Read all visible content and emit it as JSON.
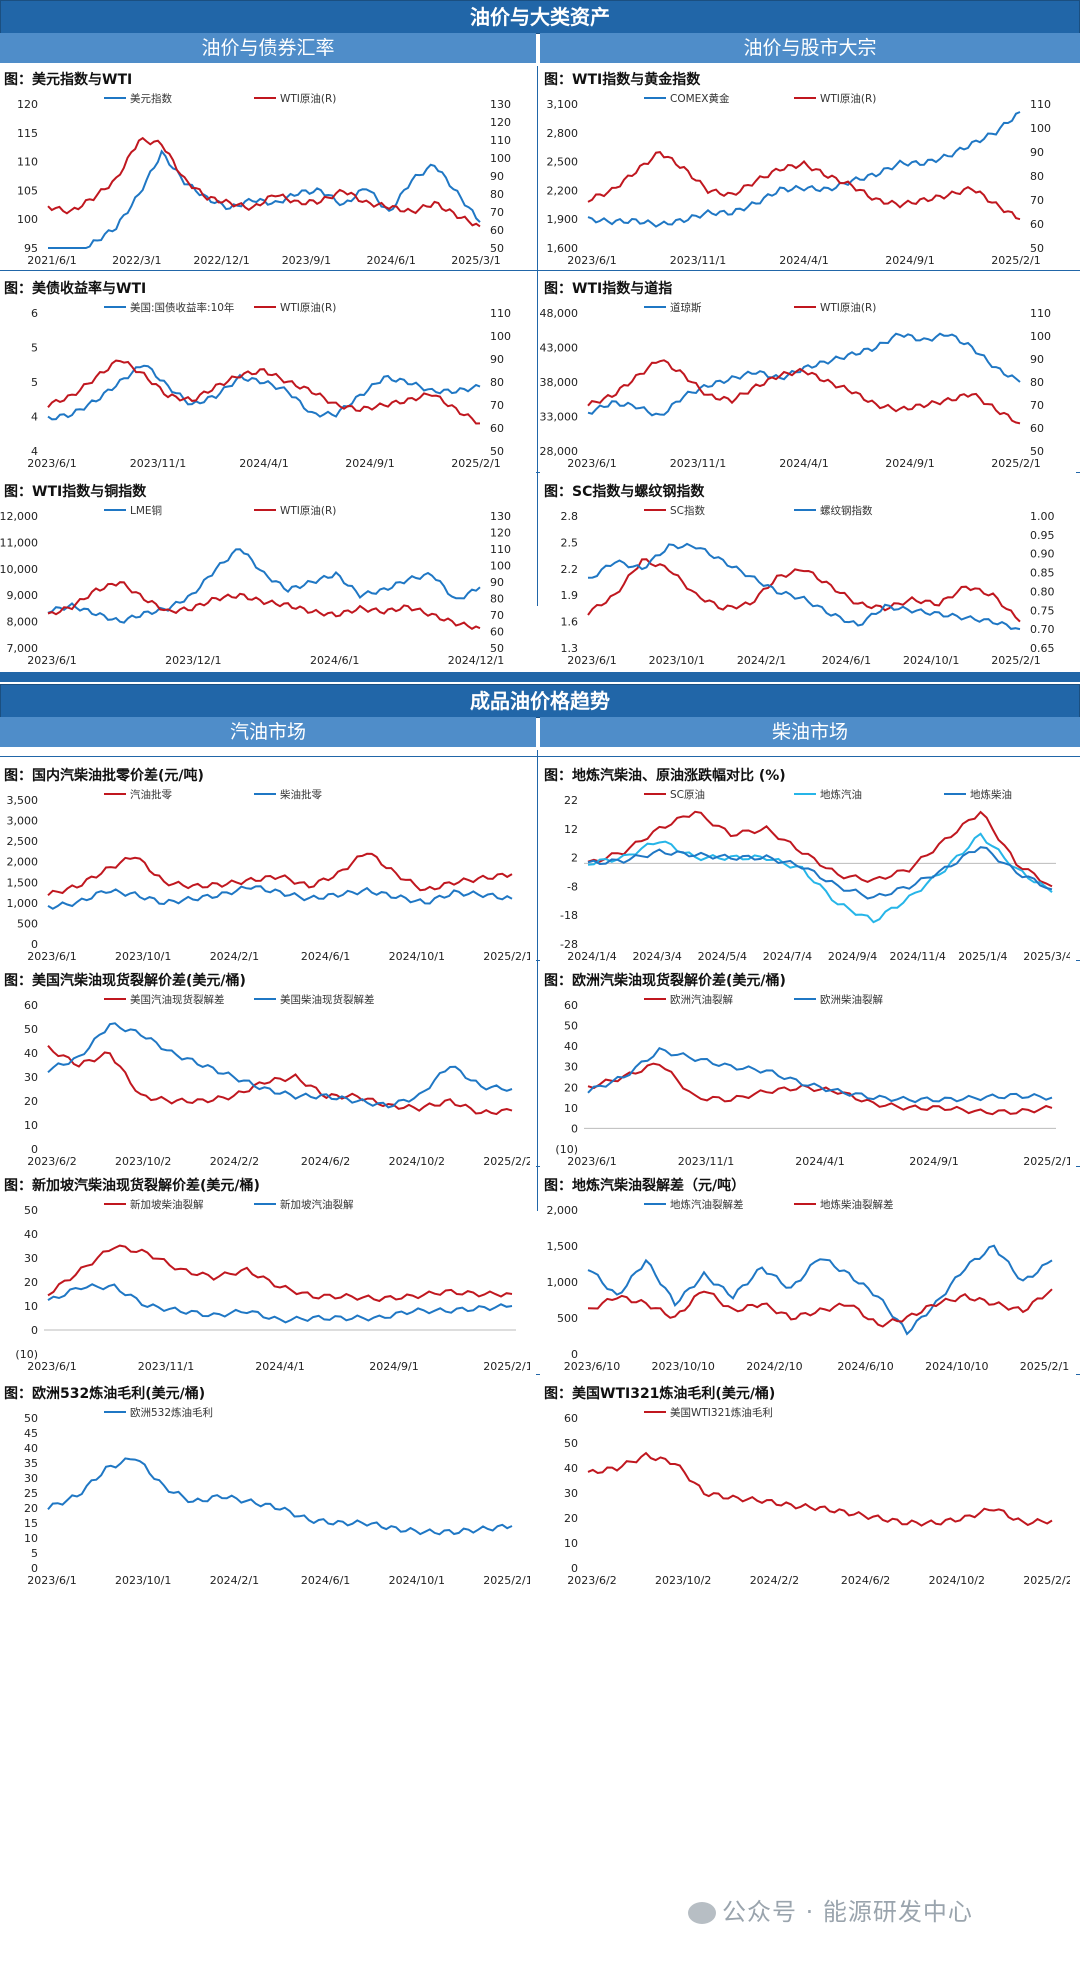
{
  "sections": {
    "top_title": "油价与大类资产",
    "top_left": "油价与债券汇率",
    "top_right": "油价与股市大宗",
    "bottom_title": "成品油价格趋势",
    "bottom_left": "汽油市场",
    "bottom_right": "柴油市场"
  },
  "watermark": "公众号 · 能源研发中心",
  "chart_data": [
    {
      "title": "图：美元指数与WTI",
      "type": "line",
      "x_ticks": [
        "2021/6/1",
        "2022/3/1",
        "2022/12/1",
        "2023/9/1",
        "2024/6/1",
        "2025/3/1"
      ],
      "ylim": [
        95,
        120
      ],
      "y_ticks": [
        "95",
        "100",
        "105",
        "110",
        "115",
        "120"
      ],
      "y2lim": [
        50,
        130
      ],
      "y2_ticks": [
        "50",
        "60",
        "70",
        "80",
        "90",
        "100",
        "110",
        "120",
        "130"
      ],
      "series": [
        {
          "name": "美元指数",
          "color": "#1f77c4",
          "axis": "left",
          "values": [
            90.5,
            92.5,
            95.9,
            98.6,
            104.3,
            111.5,
            106.5,
            103.6,
            101.9,
            103.4,
            102.7,
            104.6,
            105.0,
            102.4,
            105.6,
            101.1,
            106.8,
            109.5,
            104.5,
            99.5
          ]
        },
        {
          "name": "WTI原油(R)",
          "color": "#c0171f",
          "axis": "right",
          "values": [
            73,
            70,
            78,
            88,
            110,
            108,
            88,
            78,
            75,
            72,
            80,
            75,
            76,
            82,
            75,
            73,
            70,
            75,
            68,
            62
          ]
        }
      ]
    },
    {
      "title": "图：WTI指数与黄金指数",
      "type": "line",
      "x_ticks": [
        "2023/6/1",
        "2023/11/1",
        "2024/4/1",
        "2024/9/1",
        "2025/2/1"
      ],
      "ylim": [
        1600,
        3400
      ],
      "y_ticks": [
        "1,600",
        "1,900",
        "2,200",
        "2,500",
        "2,800",
        "3,100"
      ],
      "y2lim": [
        50,
        110
      ],
      "y2_ticks": [
        "50",
        "60",
        "70",
        "80",
        "90",
        "100",
        "110"
      ],
      "series": [
        {
          "name": "COMEX黄金",
          "color": "#1f77c4",
          "axis": "left",
          "values": [
            1960,
            1930,
            1940,
            1890,
            1950,
            2040,
            2040,
            2160,
            2330,
            2350,
            2330,
            2440,
            2520,
            2660,
            2660,
            2750,
            2900,
            3050,
            3300
          ]
        },
        {
          "name": "WTI原油(R)",
          "color": "#c0171f",
          "axis": "right",
          "values": [
            70,
            74,
            82,
            90,
            83,
            74,
            72,
            78,
            83,
            85,
            80,
            76,
            70,
            68,
            70,
            72,
            75,
            68,
            62
          ]
        }
      ]
    },
    {
      "title": "图：美债收益率与WTI",
      "type": "line",
      "x_ticks": [
        "2023/6/1",
        "2023/11/1",
        "2024/4/1",
        "2024/9/1",
        "2025/2/1"
      ],
      "ylim": [
        3,
        6
      ],
      "y_ticks": [
        "4",
        "4",
        "5",
        "5",
        "6"
      ],
      "y2lim": [
        50,
        110
      ],
      "y2_ticks": [
        "50",
        "60",
        "70",
        "80",
        "90",
        "100",
        "110"
      ],
      "series": [
        {
          "name": "美国:国债收益率:10年",
          "color": "#1f77c4",
          "axis": "left",
          "values": [
            3.7,
            3.8,
            4.1,
            4.5,
            4.9,
            4.4,
            4.0,
            4.2,
            4.6,
            4.5,
            4.3,
            3.8,
            3.8,
            4.2,
            4.6,
            4.5,
            4.3,
            4.3,
            4.4
          ]
        },
        {
          "name": "WTI原油(R)",
          "color": "#c0171f",
          "axis": "right",
          "values": [
            70,
            74,
            82,
            90,
            83,
            74,
            72,
            78,
            83,
            85,
            80,
            76,
            70,
            68,
            70,
            72,
            75,
            68,
            62
          ]
        }
      ]
    },
    {
      "title": "图：WTI指数与道指",
      "type": "line",
      "x_ticks": [
        "2023/6/1",
        "2023/11/1",
        "2024/4/1",
        "2024/9/1",
        "2025/2/1"
      ],
      "ylim": [
        28000,
        48000
      ],
      "y_ticks": [
        "28,000",
        "33,000",
        "38,000",
        "43,000",
        "48,000"
      ],
      "y2lim": [
        50,
        110
      ],
      "y2_ticks": [
        "50",
        "60",
        "70",
        "80",
        "90",
        "100",
        "110"
      ],
      "series": [
        {
          "name": "道琼斯",
          "color": "#1f77c4",
          "axis": "left",
          "values": [
            33500,
            35000,
            34500,
            33000,
            36000,
            37500,
            38500,
            39500,
            38500,
            40000,
            41000,
            42000,
            43000,
            45000,
            44000,
            45000,
            43000,
            40000,
            38000
          ]
        },
        {
          "name": "WTI原油(R)",
          "color": "#c0171f",
          "axis": "right",
          "values": [
            70,
            74,
            82,
            90,
            83,
            74,
            72,
            78,
            83,
            85,
            80,
            76,
            70,
            68,
            70,
            72,
            75,
            68,
            62
          ]
        }
      ]
    },
    {
      "title": "图：WTI指数与铜指数",
      "type": "line",
      "x_ticks": [
        "2023/6/1",
        "2023/12/1",
        "2024/6/1",
        "2024/12/1"
      ],
      "ylim": [
        7000,
        12000
      ],
      "y_ticks": [
        "7,000",
        "8,000",
        "9,000",
        "10,000",
        "11,000",
        "12,000"
      ],
      "y2lim": [
        50,
        130
      ],
      "y2_ticks": [
        "50",
        "60",
        "70",
        "80",
        "90",
        "100",
        "110",
        "120",
        "130"
      ],
      "series": [
        {
          "name": "LME铜",
          "color": "#1f77c4",
          "axis": "left",
          "values": [
            8400,
            8600,
            8300,
            8000,
            8300,
            8500,
            9000,
            10000,
            10800,
            9800,
            9200,
            9500,
            9800,
            9000,
            9200,
            9600,
            9800,
            8800,
            9300
          ]
        },
        {
          "name": "WTI原油(R)",
          "color": "#c0171f",
          "axis": "right",
          "values": [
            70,
            75,
            85,
            90,
            80,
            72,
            74,
            80,
            82,
            78,
            76,
            72,
            70,
            74,
            72,
            75,
            70,
            65,
            62
          ]
        }
      ]
    },
    {
      "title": "图：SC指数与螺纹钢指数",
      "type": "line",
      "x_ticks": [
        "2023/6/1",
        "2023/10/1",
        "2024/2/1",
        "2024/6/1",
        "2024/10/1",
        "2025/2/1"
      ],
      "ylim": [
        1.3,
        2.8
      ],
      "y_ticks": [
        "1.3",
        "1.6",
        "1.9",
        "2.2",
        "2.5",
        "2.8"
      ],
      "y2lim": [
        0.65,
        1.0
      ],
      "y2_ticks": [
        "0.65",
        "0.70",
        "0.75",
        "0.80",
        "0.85",
        "0.90",
        "0.95",
        "1.00"
      ],
      "series": [
        {
          "name": "SC指数",
          "color": "#c0171f",
          "axis": "left",
          "values": [
            1.7,
            1.9,
            2.3,
            2.2,
            1.9,
            1.75,
            1.8,
            2.1,
            2.2,
            2.0,
            1.8,
            1.75,
            1.85,
            1.8,
            2.0,
            1.9,
            1.6
          ]
        },
        {
          "name": "螺纹钢指数",
          "color": "#1f77c4",
          "axis": "right",
          "values": [
            0.83,
            0.88,
            0.86,
            0.92,
            0.92,
            0.88,
            0.84,
            0.8,
            0.78,
            0.74,
            0.71,
            0.76,
            0.75,
            0.74,
            0.73,
            0.72,
            0.7
          ]
        }
      ]
    },
    {
      "title": "图：国内汽柴油批零价差(元/吨)",
      "type": "line",
      "x_ticks": [
        "2023/6/1",
        "2023/10/1",
        "2024/2/1",
        "2024/6/1",
        "2024/10/1",
        "2025/2/1"
      ],
      "ylim": [
        0,
        3500
      ],
      "y_ticks": [
        "0",
        "500",
        "1,000",
        "1,500",
        "2,000",
        "2,500",
        "3,000",
        "3,500"
      ],
      "series": [
        {
          "name": "汽油批零",
          "color": "#c0171f",
          "values": [
            1200,
            1400,
            1800,
            2150,
            1500,
            1400,
            1450,
            1550,
            1650,
            1400,
            1700,
            2250,
            1700,
            1300,
            1500,
            1600,
            1700
          ]
        },
        {
          "name": "柴油批零",
          "color": "#1f77c4",
          "values": [
            900,
            1000,
            1300,
            1200,
            1000,
            1100,
            1200,
            1400,
            1250,
            1100,
            1200,
            1300,
            1150,
            1000,
            1250,
            1200,
            1100
          ]
        }
      ]
    },
    {
      "title": "图：地炼汽柴油、原油涨跌幅对比 (%)",
      "type": "line",
      "x_ticks": [
        "2024/1/4",
        "2024/3/4",
        "2024/5/4",
        "2024/7/4",
        "2024/9/4",
        "2024/11/4",
        "2025/1/4",
        "2025/3/4"
      ],
      "ylim": [
        -28,
        22
      ],
      "y_ticks": [
        "-28",
        "-18",
        "-8",
        "2",
        "12",
        "22"
      ],
      "series": [
        {
          "name": "SC原油",
          "color": "#c0171f",
          "values": [
            0,
            4,
            12,
            18,
            10,
            12,
            4,
            -4,
            -6,
            -2,
            8,
            18,
            0,
            -8
          ]
        },
        {
          "name": "地炼汽油",
          "color": "#26b5e8",
          "values": [
            0,
            2,
            8,
            2,
            2,
            2,
            -2,
            -14,
            -20,
            -12,
            -2,
            10,
            -2,
            -10
          ]
        },
        {
          "name": "地炼柴油",
          "color": "#1f77c4",
          "values": [
            0,
            1,
            4,
            3,
            2,
            2,
            -1,
            -8,
            -12,
            -8,
            -2,
            6,
            -3,
            -9
          ]
        }
      ]
    },
    {
      "title": "图：美国汽柴油现货裂解价差(美元/桶)",
      "type": "line",
      "x_ticks": [
        "2023/6/2",
        "2023/10/2",
        "2024/2/2",
        "2024/6/2",
        "2024/10/2",
        "2025/2/2"
      ],
      "ylim": [
        0,
        60
      ],
      "y_ticks": [
        "0",
        "10",
        "20",
        "30",
        "40",
        "50",
        "60"
      ],
      "series": [
        {
          "name": "美国汽油现货裂解差",
          "color": "#c0171f",
          "values": [
            42,
            35,
            40,
            22,
            20,
            20,
            22,
            28,
            30,
            22,
            22,
            18,
            17,
            20,
            15,
            16
          ]
        },
        {
          "name": "美国柴油现货裂解差",
          "color": "#1f77c4",
          "values": [
            33,
            38,
            52,
            48,
            40,
            35,
            30,
            25,
            22,
            22,
            20,
            18,
            22,
            35,
            26,
            25
          ]
        }
      ]
    },
    {
      "title": "图：欧洲汽柴油现货裂解价差(美元/桶)",
      "type": "line",
      "x_ticks": [
        "2023/6/1",
        "2023/11/1",
        "2024/4/1",
        "2024/9/1",
        "2025/2/1"
      ],
      "ylim": [
        -10,
        60
      ],
      "y_ticks": [
        "(10)",
        "0",
        "10",
        "20",
        "30",
        "40",
        "50",
        "60"
      ],
      "series": [
        {
          "name": "欧洲汽油裂解",
          "color": "#c0171f",
          "values": [
            20,
            25,
            32,
            15,
            14,
            18,
            20,
            18,
            12,
            10,
            10,
            8,
            8,
            10
          ]
        },
        {
          "name": "欧洲柴油裂解",
          "color": "#1f77c4",
          "values": [
            18,
            25,
            38,
            34,
            30,
            28,
            22,
            18,
            15,
            14,
            14,
            15,
            16,
            15
          ]
        }
      ]
    },
    {
      "title": "图：新加坡汽柴油现货裂解价差(美元/桶)",
      "type": "line",
      "x_ticks": [
        "2023/6/1",
        "2023/11/1",
        "2024/4/1",
        "2024/9/1",
        "2025/2/1"
      ],
      "ylim": [
        -10,
        50
      ],
      "y_ticks": [
        "(10)",
        "0",
        "10",
        "20",
        "30",
        "40",
        "50"
      ],
      "series": [
        {
          "name": "新加坡柴油裂解",
          "color": "#c0171f",
          "values": [
            15,
            25,
            35,
            32,
            25,
            22,
            25,
            18,
            14,
            14,
            13,
            14,
            16,
            15,
            15
          ]
        },
        {
          "name": "新加坡汽油裂解",
          "color": "#1f77c4",
          "values": [
            12,
            18,
            18,
            10,
            8,
            6,
            8,
            4,
            5,
            5,
            5,
            8,
            8,
            9,
            10
          ]
        }
      ]
    },
    {
      "title": "图：地炼汽柴油裂解差（元/吨）",
      "type": "line",
      "x_ticks": [
        "2023/6/10",
        "2023/10/10",
        "2024/2/10",
        "2024/6/10",
        "2024/10/10",
        "2025/2/10"
      ],
      "ylim": [
        0,
        2000
      ],
      "y_ticks": [
        "0",
        "500",
        "1,000",
        "1,500",
        "2,000"
      ],
      "series": [
        {
          "name": "地炼汽油裂解差",
          "color": "#1f77c4",
          "values": [
            1200,
            800,
            1300,
            700,
            1100,
            800,
            1200,
            900,
            1350,
            1100,
            800,
            300,
            700,
            1200,
            1500,
            1000,
            1300
          ]
        },
        {
          "name": "地炼柴油裂解差",
          "color": "#c0171f",
          "values": [
            600,
            800,
            700,
            500,
            900,
            600,
            700,
            500,
            600,
            700,
            400,
            500,
            700,
            800,
            700,
            600,
            900
          ]
        }
      ]
    },
    {
      "title": "图：欧洲532炼油毛利(美元/桶)",
      "type": "line",
      "x_ticks": [
        "2023/6/1",
        "2023/10/1",
        "2024/2/1",
        "2024/6/1",
        "2024/10/1",
        "2025/2/1"
      ],
      "ylim": [
        0,
        50
      ],
      "y_ticks": [
        "0",
        "5",
        "10",
        "15",
        "20",
        "25",
        "30",
        "35",
        "40",
        "45",
        "50"
      ],
      "series": [
        {
          "name": "欧洲532炼油毛利",
          "color": "#1f77c4",
          "values": [
            20,
            24,
            33,
            37,
            27,
            22,
            24,
            22,
            20,
            16,
            15,
            15,
            13,
            12,
            12,
            13,
            14
          ]
        }
      ]
    },
    {
      "title": "图：美国WTI321炼油毛利(美元/桶)",
      "type": "line",
      "x_ticks": [
        "2023/6/2",
        "2023/10/2",
        "2024/2/2",
        "2024/6/2",
        "2024/10/2",
        "2025/2/2"
      ],
      "ylim": [
        0,
        60
      ],
      "y_ticks": [
        "0",
        "10",
        "20",
        "30",
        "40",
        "50",
        "60"
      ],
      "series": [
        {
          "name": "美国WTI321炼油毛利",
          "color": "#c0171f",
          "values": [
            38,
            40,
            45,
            42,
            30,
            28,
            27,
            25,
            24,
            22,
            20,
            18,
            18,
            20,
            24,
            18,
            19
          ]
        }
      ]
    }
  ]
}
